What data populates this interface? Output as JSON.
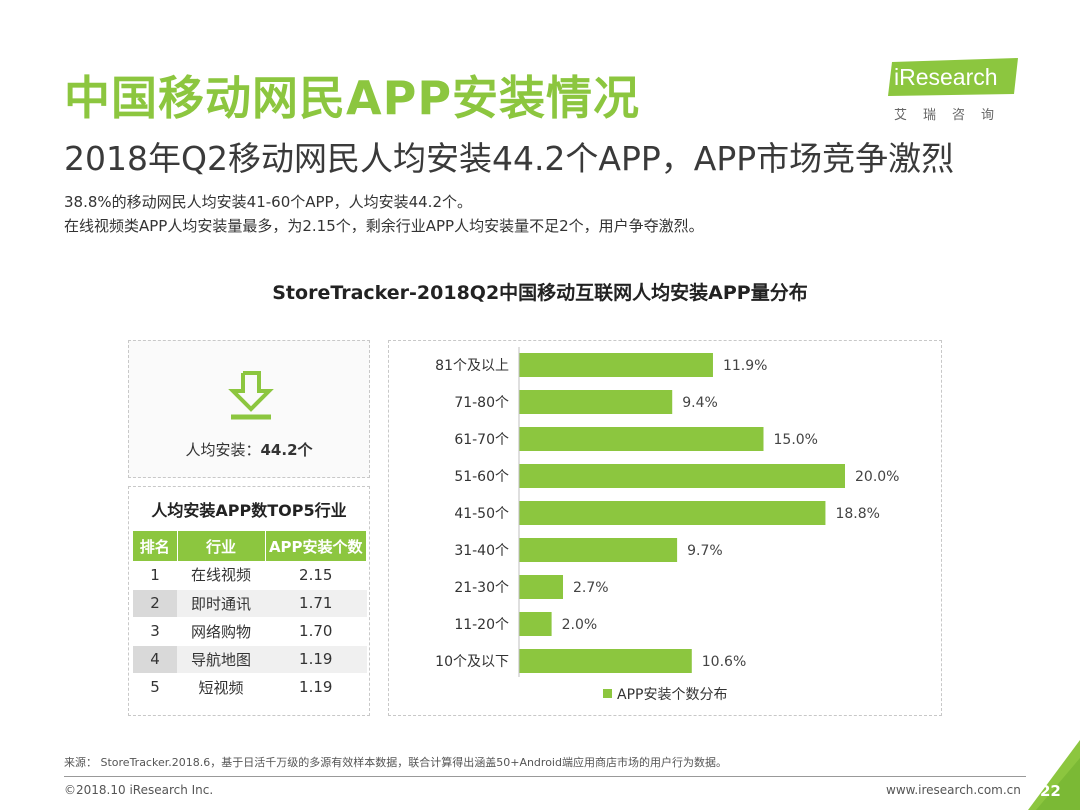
{
  "header": {
    "title": "中国移动网民APP安装情况",
    "subtitle": "2018年Q2移动网民人均安装44.2个APP，APP市场竞争激烈"
  },
  "logo": {
    "brand": "iResearch",
    "cn": "艾瑞咨询"
  },
  "description": {
    "line1": "38.8%的移动网民人均安装41-60个APP，人均安装44.2个。",
    "line2": "在线视频类APP人均安装量最多，为2.15个，剩余行业APP人均安装量不足2个，用户争夺激烈。"
  },
  "chart_title": "StoreTracker-2018Q2中国移动互联网人均安装APP量分布",
  "average": {
    "label": "人均安装：",
    "value": "44.2个",
    "icon": "download-arrow-icon"
  },
  "top5": {
    "title": "人均安装APP数TOP5行业",
    "headers": [
      "排名",
      "行业",
      "APP安装个数"
    ],
    "rows": [
      {
        "rank": "1",
        "industry": "在线视频",
        "count": "2.15"
      },
      {
        "rank": "2",
        "industry": "即时通讯",
        "count": "1.71"
      },
      {
        "rank": "3",
        "industry": "网络购物",
        "count": "1.70"
      },
      {
        "rank": "4",
        "industry": "导航地图",
        "count": "1.19"
      },
      {
        "rank": "5",
        "industry": "短视频",
        "count": "1.19"
      }
    ]
  },
  "chart_data": {
    "type": "bar",
    "orientation": "horizontal",
    "categories": [
      "81个及以上",
      "71-80个",
      "61-70个",
      "51-60个",
      "41-50个",
      "31-40个",
      "21-30个",
      "11-20个",
      "10个及以下"
    ],
    "series": [
      {
        "name": "APP安装个数分布",
        "values": [
          11.9,
          9.4,
          15.0,
          20.0,
          18.8,
          9.7,
          2.7,
          2.0,
          10.6
        ],
        "labels": [
          "11.9%",
          "9.4%",
          "15.0%",
          "20.0%",
          "18.8%",
          "9.7%",
          "2.7%",
          "2.0%",
          "10.6%"
        ]
      }
    ],
    "xlim": [
      0,
      20
    ],
    "color": "#8cc63f",
    "legend": "bottom",
    "grid": false
  },
  "footer": {
    "source": "来源： StoreTracker.2018.6，基于日活千万级的多源有效样本数据，联合计算得出涵盖50+Android端应用商店市场的用户行为数据。",
    "copyright": "©2018.10 iResearch Inc.",
    "site": "www.iresearch.com.cn",
    "page": "22"
  },
  "colors": {
    "accent": "#8cc63f",
    "corner_fill": "#8cc63f"
  }
}
